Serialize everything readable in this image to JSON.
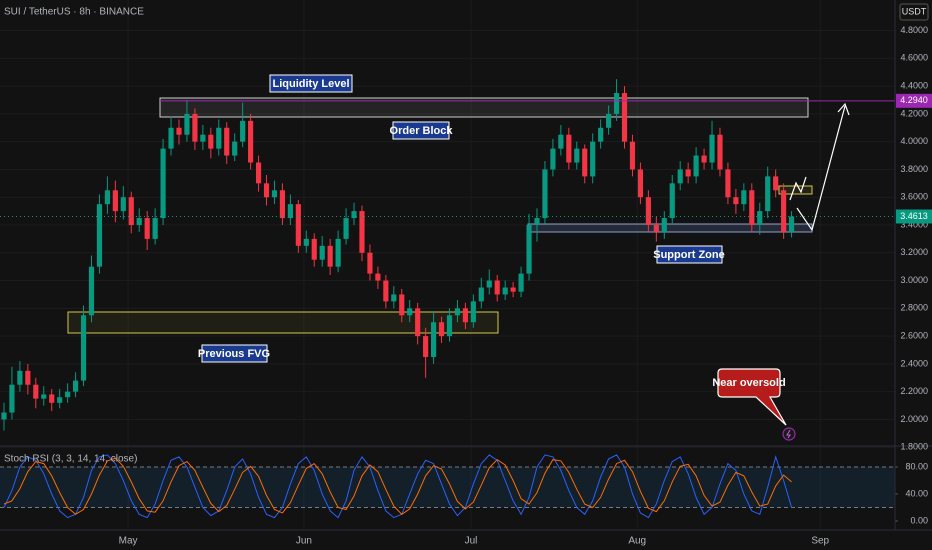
{
  "chart_data": [
    {
      "type": "candlestick",
      "title": "SUI / TetherUS · 8h · BINANCE",
      "quote_label": "USDT",
      "up_color": "#089981",
      "down_color": "#f23645",
      "ohlc": [
        [
          2.0,
          2.12,
          1.92,
          2.05
        ],
        [
          2.05,
          2.38,
          2.0,
          2.25
        ],
        [
          2.25,
          2.42,
          2.2,
          2.35
        ],
        [
          2.35,
          2.4,
          2.18,
          2.25
        ],
        [
          2.25,
          2.3,
          2.08,
          2.15
        ],
        [
          2.15,
          2.24,
          2.1,
          2.18
        ],
        [
          2.18,
          2.22,
          2.06,
          2.12
        ],
        [
          2.12,
          2.22,
          2.08,
          2.16
        ],
        [
          2.16,
          2.26,
          2.12,
          2.2
        ],
        [
          2.2,
          2.34,
          2.16,
          2.28
        ],
        [
          2.28,
          2.82,
          2.24,
          2.75
        ],
        [
          2.75,
          3.18,
          2.7,
          3.1
        ],
        [
          3.1,
          3.62,
          3.05,
          3.55
        ],
        [
          3.55,
          3.75,
          3.48,
          3.65
        ],
        [
          3.65,
          3.72,
          3.42,
          3.5
        ],
        [
          3.5,
          3.68,
          3.44,
          3.6
        ],
        [
          3.6,
          3.64,
          3.34,
          3.4
        ],
        [
          3.4,
          3.52,
          3.35,
          3.45
        ],
        [
          3.45,
          3.5,
          3.22,
          3.3
        ],
        [
          3.3,
          3.52,
          3.26,
          3.45
        ],
        [
          3.45,
          4.02,
          3.4,
          3.95
        ],
        [
          3.95,
          4.18,
          3.9,
          4.1
        ],
        [
          4.1,
          4.16,
          3.98,
          4.05
        ],
        [
          4.05,
          4.3,
          4.0,
          4.2
        ],
        [
          4.2,
          4.24,
          3.94,
          4.0
        ],
        [
          4.0,
          4.12,
          3.94,
          4.05
        ],
        [
          4.05,
          4.1,
          3.88,
          3.95
        ],
        [
          3.95,
          4.16,
          3.9,
          4.1
        ],
        [
          4.1,
          4.14,
          3.84,
          3.9
        ],
        [
          3.9,
          4.06,
          3.86,
          4.0
        ],
        [
          4.0,
          4.28,
          3.96,
          4.15
        ],
        [
          4.15,
          4.2,
          3.8,
          3.85
        ],
        [
          3.85,
          3.9,
          3.64,
          3.7
        ],
        [
          3.7,
          3.76,
          3.54,
          3.6
        ],
        [
          3.6,
          3.72,
          3.55,
          3.65
        ],
        [
          3.65,
          3.7,
          3.4,
          3.45
        ],
        [
          3.45,
          3.62,
          3.4,
          3.55
        ],
        [
          3.55,
          3.58,
          3.2,
          3.25
        ],
        [
          3.25,
          3.36,
          3.2,
          3.3
        ],
        [
          3.3,
          3.34,
          3.1,
          3.15
        ],
        [
          3.15,
          3.32,
          3.1,
          3.25
        ],
        [
          3.25,
          3.3,
          3.04,
          3.1
        ],
        [
          3.1,
          3.36,
          3.06,
          3.3
        ],
        [
          3.3,
          3.52,
          3.26,
          3.45
        ],
        [
          3.45,
          3.56,
          3.4,
          3.5
        ],
        [
          3.5,
          3.54,
          3.14,
          3.2
        ],
        [
          3.2,
          3.26,
          3.0,
          3.05
        ],
        [
          3.05,
          3.1,
          2.94,
          3.0
        ],
        [
          3.0,
          3.04,
          2.8,
          2.85
        ],
        [
          2.85,
          2.96,
          2.8,
          2.9
        ],
        [
          2.9,
          2.94,
          2.7,
          2.75
        ],
        [
          2.75,
          2.86,
          2.7,
          2.8
        ],
        [
          2.8,
          2.84,
          2.54,
          2.6
        ],
        [
          2.6,
          2.66,
          2.3,
          2.45
        ],
        [
          2.45,
          2.78,
          2.4,
          2.7
        ],
        [
          2.7,
          2.74,
          2.55,
          2.6
        ],
        [
          2.6,
          2.8,
          2.56,
          2.75
        ],
        [
          2.75,
          2.86,
          2.7,
          2.8
        ],
        [
          2.8,
          2.84,
          2.65,
          2.7
        ],
        [
          2.7,
          2.9,
          2.66,
          2.85
        ],
        [
          2.85,
          3.02,
          2.8,
          2.95
        ],
        [
          2.95,
          3.08,
          2.9,
          3.0
        ],
        [
          3.0,
          3.04,
          2.85,
          2.9
        ],
        [
          2.9,
          3.0,
          2.86,
          2.95
        ],
        [
          2.95,
          2.99,
          2.88,
          2.92
        ],
        [
          2.92,
          3.1,
          2.88,
          3.05
        ],
        [
          3.05,
          3.48,
          3.0,
          3.4
        ],
        [
          3.4,
          3.52,
          3.28,
          3.45
        ],
        [
          3.45,
          3.86,
          3.4,
          3.8
        ],
        [
          3.8,
          4.02,
          3.75,
          3.95
        ],
        [
          3.95,
          4.12,
          3.9,
          4.05
        ],
        [
          4.05,
          4.1,
          3.8,
          3.85
        ],
        [
          3.85,
          4.0,
          3.8,
          3.95
        ],
        [
          3.95,
          3.98,
          3.7,
          3.75
        ],
        [
          3.75,
          4.06,
          3.7,
          4.0
        ],
        [
          4.0,
          4.16,
          3.95,
          4.1
        ],
        [
          4.1,
          4.26,
          4.05,
          4.2
        ],
        [
          4.2,
          4.45,
          4.15,
          4.35
        ],
        [
          4.35,
          4.4,
          3.95,
          4.0
        ],
        [
          4.0,
          4.05,
          3.75,
          3.8
        ],
        [
          3.8,
          3.85,
          3.55,
          3.6
        ],
        [
          3.6,
          3.65,
          3.35,
          3.4
        ],
        [
          3.4,
          3.46,
          3.28,
          3.35
        ],
        [
          3.35,
          3.5,
          3.3,
          3.45
        ],
        [
          3.45,
          3.76,
          3.4,
          3.7
        ],
        [
          3.7,
          3.86,
          3.65,
          3.8
        ],
        [
          3.8,
          3.85,
          3.7,
          3.75
        ],
        [
          3.75,
          3.96,
          3.7,
          3.9
        ],
        [
          3.9,
          3.95,
          3.8,
          3.85
        ],
        [
          3.85,
          4.15,
          3.8,
          4.05
        ],
        [
          4.05,
          4.1,
          3.75,
          3.8
        ],
        [
          3.8,
          3.85,
          3.55,
          3.6
        ],
        [
          3.6,
          3.66,
          3.48,
          3.55
        ],
        [
          3.55,
          3.7,
          3.5,
          3.65
        ],
        [
          3.65,
          3.7,
          3.35,
          3.4
        ],
        [
          3.4,
          3.56,
          3.33,
          3.5
        ],
        [
          3.5,
          3.82,
          3.45,
          3.75
        ],
        [
          3.75,
          3.8,
          3.6,
          3.65
        ],
        [
          3.65,
          3.7,
          3.3,
          3.35
        ],
        [
          3.35,
          3.5,
          3.31,
          3.4613
        ]
      ],
      "xlim": [
        -0.5,
        112
      ],
      "xticks": [
        {
          "value": 15.6,
          "label": "May"
        },
        {
          "value": 37.7,
          "label": "Jun"
        },
        {
          "value": 58.7,
          "label": "Jul"
        },
        {
          "value": 79.6,
          "label": "Aug"
        },
        {
          "value": 102.6,
          "label": "Sep"
        }
      ],
      "ylim": [
        1.78,
        5.02
      ],
      "yticks": [
        {
          "value": 1.8,
          "label": "1.8000"
        },
        {
          "value": 2.0,
          "label": "2.0000"
        },
        {
          "value": 2.2,
          "label": "2.2000"
        },
        {
          "value": 2.4,
          "label": "2.4000"
        },
        {
          "value": 2.6,
          "label": "2.6000"
        },
        {
          "value": 2.8,
          "label": "2.8000"
        },
        {
          "value": 3.0,
          "label": "3.0000"
        },
        {
          "value": 3.2,
          "label": "3.2000"
        },
        {
          "value": 3.4,
          "label": "3.4000"
        },
        {
          "value": 3.6,
          "label": "3.6000"
        },
        {
          "value": 3.8,
          "label": "3.8000"
        },
        {
          "value": 4.0,
          "label": "4.0000"
        },
        {
          "value": 4.2,
          "label": "4.2000"
        },
        {
          "value": 4.4,
          "label": "4.4000"
        },
        {
          "value": 4.6,
          "label": "4.6000"
        },
        {
          "value": 4.8,
          "label": "4.8000"
        }
      ],
      "price_lines": [
        {
          "value": 4.294,
          "label": "4.2940",
          "color": "#9c27b0"
        },
        {
          "value": 3.4613,
          "label": "3.4613",
          "color": "#089981"
        }
      ],
      "annotations": [
        "Liquidity Level",
        "Order Block",
        "Support Zone",
        "Previous FVG",
        "Near oversold"
      ]
    },
    {
      "type": "line",
      "title": "Stoch RSI (3, 3, 14, 14, close)",
      "series": [
        {
          "color": "#2962ff",
          "values": [
            20,
            45,
            80,
            95,
            90,
            70,
            40,
            15,
            5,
            10,
            35,
            75,
            95,
            98,
            85,
            60,
            30,
            10,
            5,
            25,
            60,
            90,
            95,
            80,
            50,
            20,
            8,
            15,
            45,
            80,
            92,
            70,
            35,
            10,
            5,
            20,
            55,
            85,
            95,
            75,
            40,
            15,
            5,
            30,
            75,
            95,
            80,
            45,
            15,
            5,
            10,
            40,
            70,
            90,
            85,
            55,
            25,
            8,
            20,
            55,
            85,
            98,
            90,
            60,
            30,
            10,
            35,
            80,
            98,
            95,
            75,
            45,
            20,
            10,
            30,
            65,
            92,
            98,
            80,
            40,
            12,
            5,
            25,
            60,
            88,
            95,
            70,
            35,
            10,
            20,
            55,
            85,
            75,
            40,
            15,
            10,
            50,
            95,
            60,
            20
          ]
        },
        {
          "color": "#ff6d00",
          "values": [
            25,
            30,
            48,
            73,
            88,
            85,
            67,
            42,
            20,
            10,
            17,
            40,
            68,
            89,
            93,
            81,
            58,
            33,
            15,
            13,
            30,
            58,
            82,
            88,
            75,
            50,
            26,
            14,
            23,
            47,
            72,
            81,
            66,
            38,
            17,
            12,
            27,
            53,
            78,
            85,
            70,
            43,
            20,
            17,
            37,
            67,
            83,
            73,
            47,
            22,
            10,
            18,
            40,
            67,
            82,
            77,
            55,
            29,
            18,
            28,
            53,
            79,
            91,
            83,
            60,
            33,
            25,
            42,
            71,
            91,
            89,
            72,
            47,
            25,
            20,
            35,
            62,
            85,
            90,
            73,
            44,
            19,
            14,
            30,
            58,
            81,
            84,
            67,
            38,
            22,
            28,
            53,
            72,
            67,
            43,
            22,
            25,
            52,
            68,
            58
          ]
        }
      ],
      "ylim": [
        0,
        100
      ],
      "yticks": [
        {
          "value": 80,
          "label": "80.00"
        },
        {
          "value": 40,
          "label": "40.00"
        },
        {
          "value": 0,
          "label": "0.00"
        }
      ],
      "bands": [
        20,
        80
      ]
    }
  ]
}
